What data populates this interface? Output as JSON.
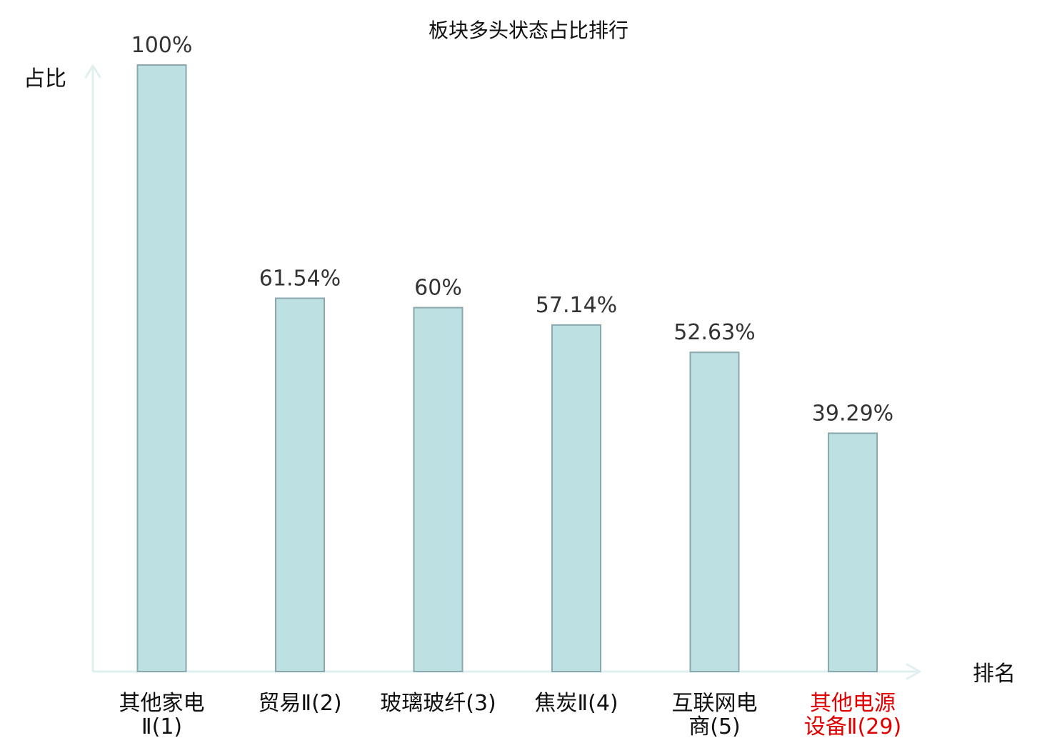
{
  "chart_data": {
    "type": "bar",
    "title": "板块多头状态占比排行",
    "ylabel": "占比",
    "xlabel": "排名",
    "ylim": [
      0,
      100
    ],
    "grid": false,
    "categories": [
      [
        "其他家电",
        "Ⅱ(1)"
      ],
      [
        "贸易Ⅱ(2)"
      ],
      [
        "玻璃玻纤(3)"
      ],
      [
        "焦炭Ⅱ(4)"
      ],
      [
        "互联网电",
        "商(5)"
      ],
      [
        "其他电源",
        "设备Ⅱ(29)"
      ]
    ],
    "values": [
      100,
      61.54,
      60,
      57.14,
      52.63,
      39.29
    ],
    "value_labels": [
      "100%",
      "61.54%",
      "60%",
      "57.14%",
      "52.63%",
      "39.29%"
    ],
    "highlight_index": 5,
    "colors": {
      "bar_fill": "#bde0e3",
      "bar_stroke": "#8aa8ad",
      "axis": "#dff0ee",
      "highlight_text": "#e00000",
      "text": "#111111",
      "value_text": "#333333"
    }
  }
}
